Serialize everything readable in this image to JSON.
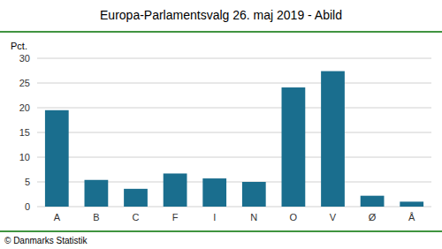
{
  "chart_data": {
    "type": "bar",
    "title": "Europa-Parlamentsvalg 26. maj 2019 - Abild",
    "categories": [
      "A",
      "B",
      "C",
      "F",
      "I",
      "N",
      "O",
      "V",
      "Ø",
      "Å"
    ],
    "values": [
      19.5,
      5.4,
      3.6,
      6.7,
      5.7,
      5.0,
      24.1,
      27.4,
      2.2,
      1.0
    ],
    "color": "#1a6e8e",
    "ylabel": "Pct.",
    "footer": "© Danmarks Statistik",
    "ylim": [
      0,
      30
    ],
    "yticks": [
      0,
      5,
      10,
      15,
      20,
      25,
      30
    ],
    "grid": true
  }
}
